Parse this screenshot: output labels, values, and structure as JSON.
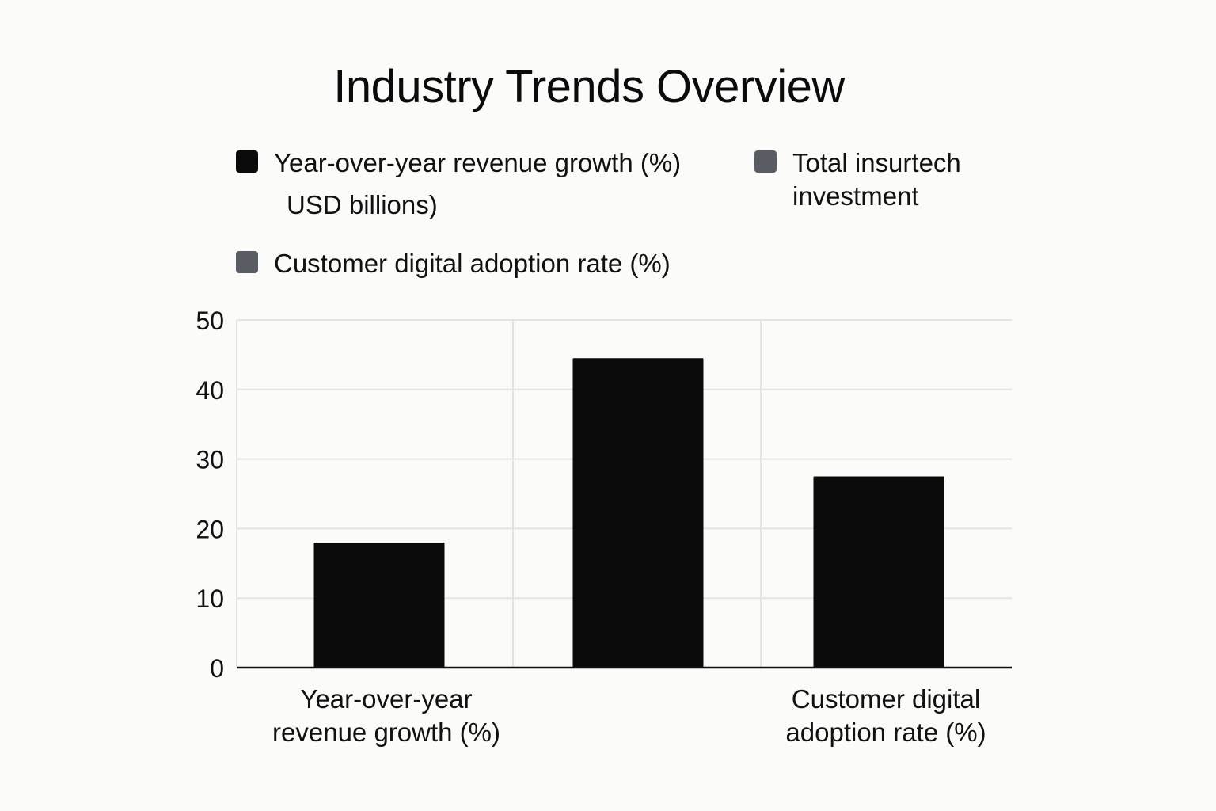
{
  "chart_data": {
    "type": "bar",
    "title": "Industry Trends Overview",
    "categories": [
      "Year-over-year revenue growth (%)",
      "Total insurtech investment (USD billions)",
      "Customer digital adoption rate (%)"
    ],
    "category_labels_display": [
      [
        "Year-over-year",
        "revenue growth (%)"
      ],
      [],
      [
        "Customer digital",
        "adoption rate (%)"
      ]
    ],
    "values": [
      18,
      44.5,
      27.5
    ],
    "bar_color": "#0b0b0b",
    "xlabel": "",
    "ylabel": "",
    "ylim": [
      0,
      50
    ],
    "yticks": [
      0,
      10,
      20,
      30,
      40,
      50
    ],
    "grid": true,
    "legend": {
      "placement": "top",
      "entries": [
        {
          "label": "Year-over-year revenue growth (%)",
          "color": "#0b0b0b"
        },
        {
          "label": "USD billions)",
          "color": null
        },
        {
          "label": "Total insurtech\ninvestment",
          "color": "#5a5c63"
        },
        {
          "label": "Customer digital adoption rate (%)",
          "color": "#5a5c63"
        }
      ]
    }
  }
}
